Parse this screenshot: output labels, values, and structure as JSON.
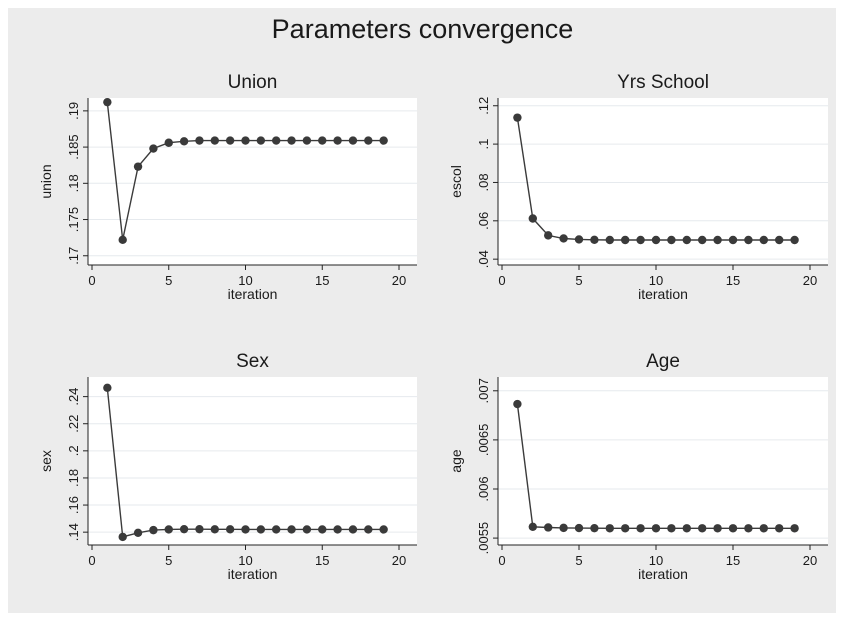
{
  "title": "Parameters convergence",
  "chart_data": [
    {
      "type": "line",
      "title": "Union",
      "xlabel": "iteration",
      "ylabel": "union",
      "xlim": [
        0,
        20
      ],
      "ylim": [
        0.169,
        0.1915
      ],
      "xticks": [
        "0",
        "5",
        "10",
        "15",
        "20"
      ],
      "yticks": [
        ".17",
        ".175",
        ".18",
        ".185",
        ".19"
      ],
      "grid": true,
      "x": [
        1,
        2,
        3,
        4,
        5,
        6,
        7,
        8,
        9,
        10,
        11,
        12,
        13,
        14,
        15,
        16,
        17,
        18,
        19
      ],
      "values": [
        0.1912,
        0.1722,
        0.1823,
        0.1848,
        0.1856,
        0.1858,
        0.1859,
        0.1859,
        0.1859,
        0.1859,
        0.1859,
        0.1859,
        0.1859,
        0.1859,
        0.1859,
        0.1859,
        0.1859,
        0.1859,
        0.1859
      ]
    },
    {
      "type": "line",
      "title": "Yrs School",
      "xlabel": "iteration",
      "ylabel": "escol",
      "xlim": [
        0,
        20
      ],
      "ylim": [
        0.038,
        0.123
      ],
      "xticks": [
        "0",
        "5",
        "10",
        "15",
        "20"
      ],
      "yticks": [
        ".04",
        ".06",
        ".08",
        ".1",
        ".12"
      ],
      "grid": true,
      "x": [
        1,
        2,
        3,
        4,
        5,
        6,
        7,
        8,
        9,
        10,
        11,
        12,
        13,
        14,
        15,
        16,
        17,
        18,
        19
      ],
      "values": [
        0.1138,
        0.0612,
        0.0524,
        0.0508,
        0.0503,
        0.0501,
        0.05,
        0.05,
        0.05,
        0.05,
        0.05,
        0.05,
        0.05,
        0.05,
        0.05,
        0.05,
        0.05,
        0.05,
        0.05
      ]
    },
    {
      "type": "line",
      "title": "Sex",
      "xlabel": "iteration",
      "ylabel": "sex",
      "xlim": [
        0,
        20
      ],
      "ylim": [
        0.132,
        0.253
      ],
      "xticks": [
        "0",
        "5",
        "10",
        "15",
        "20"
      ],
      "yticks": [
        ".14",
        ".16",
        ".18",
        ".2",
        ".22",
        ".24"
      ],
      "grid": true,
      "x": [
        1,
        2,
        3,
        4,
        5,
        6,
        7,
        8,
        9,
        10,
        11,
        12,
        13,
        14,
        15,
        16,
        17,
        18,
        19
      ],
      "values": [
        0.2465,
        0.1365,
        0.1395,
        0.1415,
        0.142,
        0.1422,
        0.1422,
        0.1421,
        0.1421,
        0.142,
        0.142,
        0.142,
        0.142,
        0.142,
        0.142,
        0.142,
        0.142,
        0.142,
        0.142
      ]
    },
    {
      "type": "line",
      "title": "Age",
      "xlabel": "iteration",
      "ylabel": "age",
      "xlim": [
        0,
        20
      ],
      "ylim": [
        0.00545,
        0.00712
      ],
      "xticks": [
        "0",
        "5",
        "10",
        "15",
        "20"
      ],
      "yticks": [
        ".0055",
        ".006",
        ".0065",
        ".007"
      ],
      "grid": true,
      "x": [
        1,
        2,
        3,
        4,
        5,
        6,
        7,
        8,
        9,
        10,
        11,
        12,
        13,
        14,
        15,
        16,
        17,
        18,
        19
      ],
      "values": [
        0.006865,
        0.005615,
        0.005608,
        0.005604,
        0.005602,
        0.005601,
        0.0056,
        0.0056,
        0.0056,
        0.0056,
        0.0056,
        0.0056,
        0.0056,
        0.0056,
        0.0056,
        0.0056,
        0.0056,
        0.0056,
        0.0056
      ]
    }
  ]
}
